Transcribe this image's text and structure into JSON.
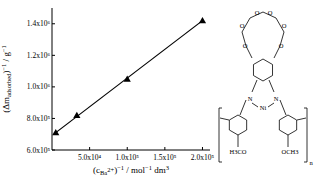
{
  "chart_data": {
    "type": "scatter",
    "xlabel": [
      "(c",
      "Ba",
      "2+",
      ")",
      "−1",
      " / mol",
      "−1",
      " dm",
      "3"
    ],
    "ylabel": [
      "(Δm",
      "adsorbed",
      ")",
      "−1",
      " / g",
      "−1"
    ],
    "series": [
      {
        "type": "scatter",
        "marker": "triangle",
        "color": "#000000",
        "x": [
          5000,
          33000,
          100000,
          200000
        ],
        "values": [
          710000,
          820000,
          1050000,
          1420000
        ]
      },
      {
        "type": "line",
        "line_style": "solid",
        "color": "#000000",
        "x": [
          5000,
          200000
        ],
        "values": [
          710000,
          1420000
        ]
      }
    ],
    "xlim": [
      0,
      210000
    ],
    "ylim": [
      600000,
      1500000
    ],
    "xticks": [
      {
        "value": 50000,
        "label": "5.0x10⁴"
      },
      {
        "value": 100000,
        "label": "1.0x10⁵"
      },
      {
        "value": 150000,
        "label": "1.5x10⁵"
      },
      {
        "value": 200000,
        "label": "2.0x10⁵"
      }
    ],
    "yticks": [
      {
        "value": 600000,
        "label": "6.0x10⁵"
      },
      {
        "value": 800000,
        "label": "8.0x10⁵"
      },
      {
        "value": 1000000,
        "label": "1.0x10⁶"
      },
      {
        "value": 1200000,
        "label": "1.2x10⁶"
      },
      {
        "value": 1400000,
        "label": "1.4x10⁶"
      }
    ],
    "grid": false,
    "structure_labels": [
      "O",
      "O",
      "O",
      "O",
      "O",
      "O",
      "N",
      "N",
      "Ni",
      "OCH3",
      "H3CO",
      "n"
    ]
  }
}
